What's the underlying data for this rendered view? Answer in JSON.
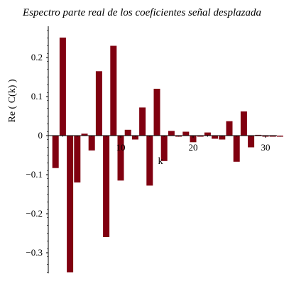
{
  "chart_data": {
    "type": "bar",
    "title": "Espectro parte real de los coeficientes señal desplazada",
    "xlabel": "k",
    "ylabel": "Re ( C(k) )",
    "xlim": [
      0,
      32
    ],
    "ylim": [
      -0.35,
      0.28
    ],
    "xticks": [
      10,
      20,
      30
    ],
    "yticks": [
      -0.3,
      -0.2,
      -0.1,
      0,
      0.1,
      0.2
    ],
    "ytick_labels": [
      "−0.3",
      "−0.2",
      "−0.1",
      "0",
      "0.1",
      "0.2"
    ],
    "bar_color": "#800010",
    "x": [
      1,
      2,
      3,
      4,
      5,
      6,
      7,
      8,
      9,
      10,
      11,
      12,
      13,
      14,
      15,
      16,
      17,
      18,
      19,
      20,
      21,
      22,
      23,
      24,
      25,
      26,
      27,
      28,
      29,
      30,
      31,
      32
    ],
    "values": [
      -0.083,
      0.251,
      -0.35,
      -0.12,
      0.005,
      -0.038,
      0.165,
      -0.26,
      0.23,
      -0.115,
      0.015,
      -0.01,
      0.072,
      -0.128,
      0.12,
      -0.065,
      0.012,
      -0.002,
      0.01,
      -0.017,
      0.0,
      0.008,
      -0.008,
      -0.01,
      0.037,
      -0.067,
      0.062,
      -0.03,
      0.002,
      0.0,
      0.0,
      0.0
    ]
  }
}
